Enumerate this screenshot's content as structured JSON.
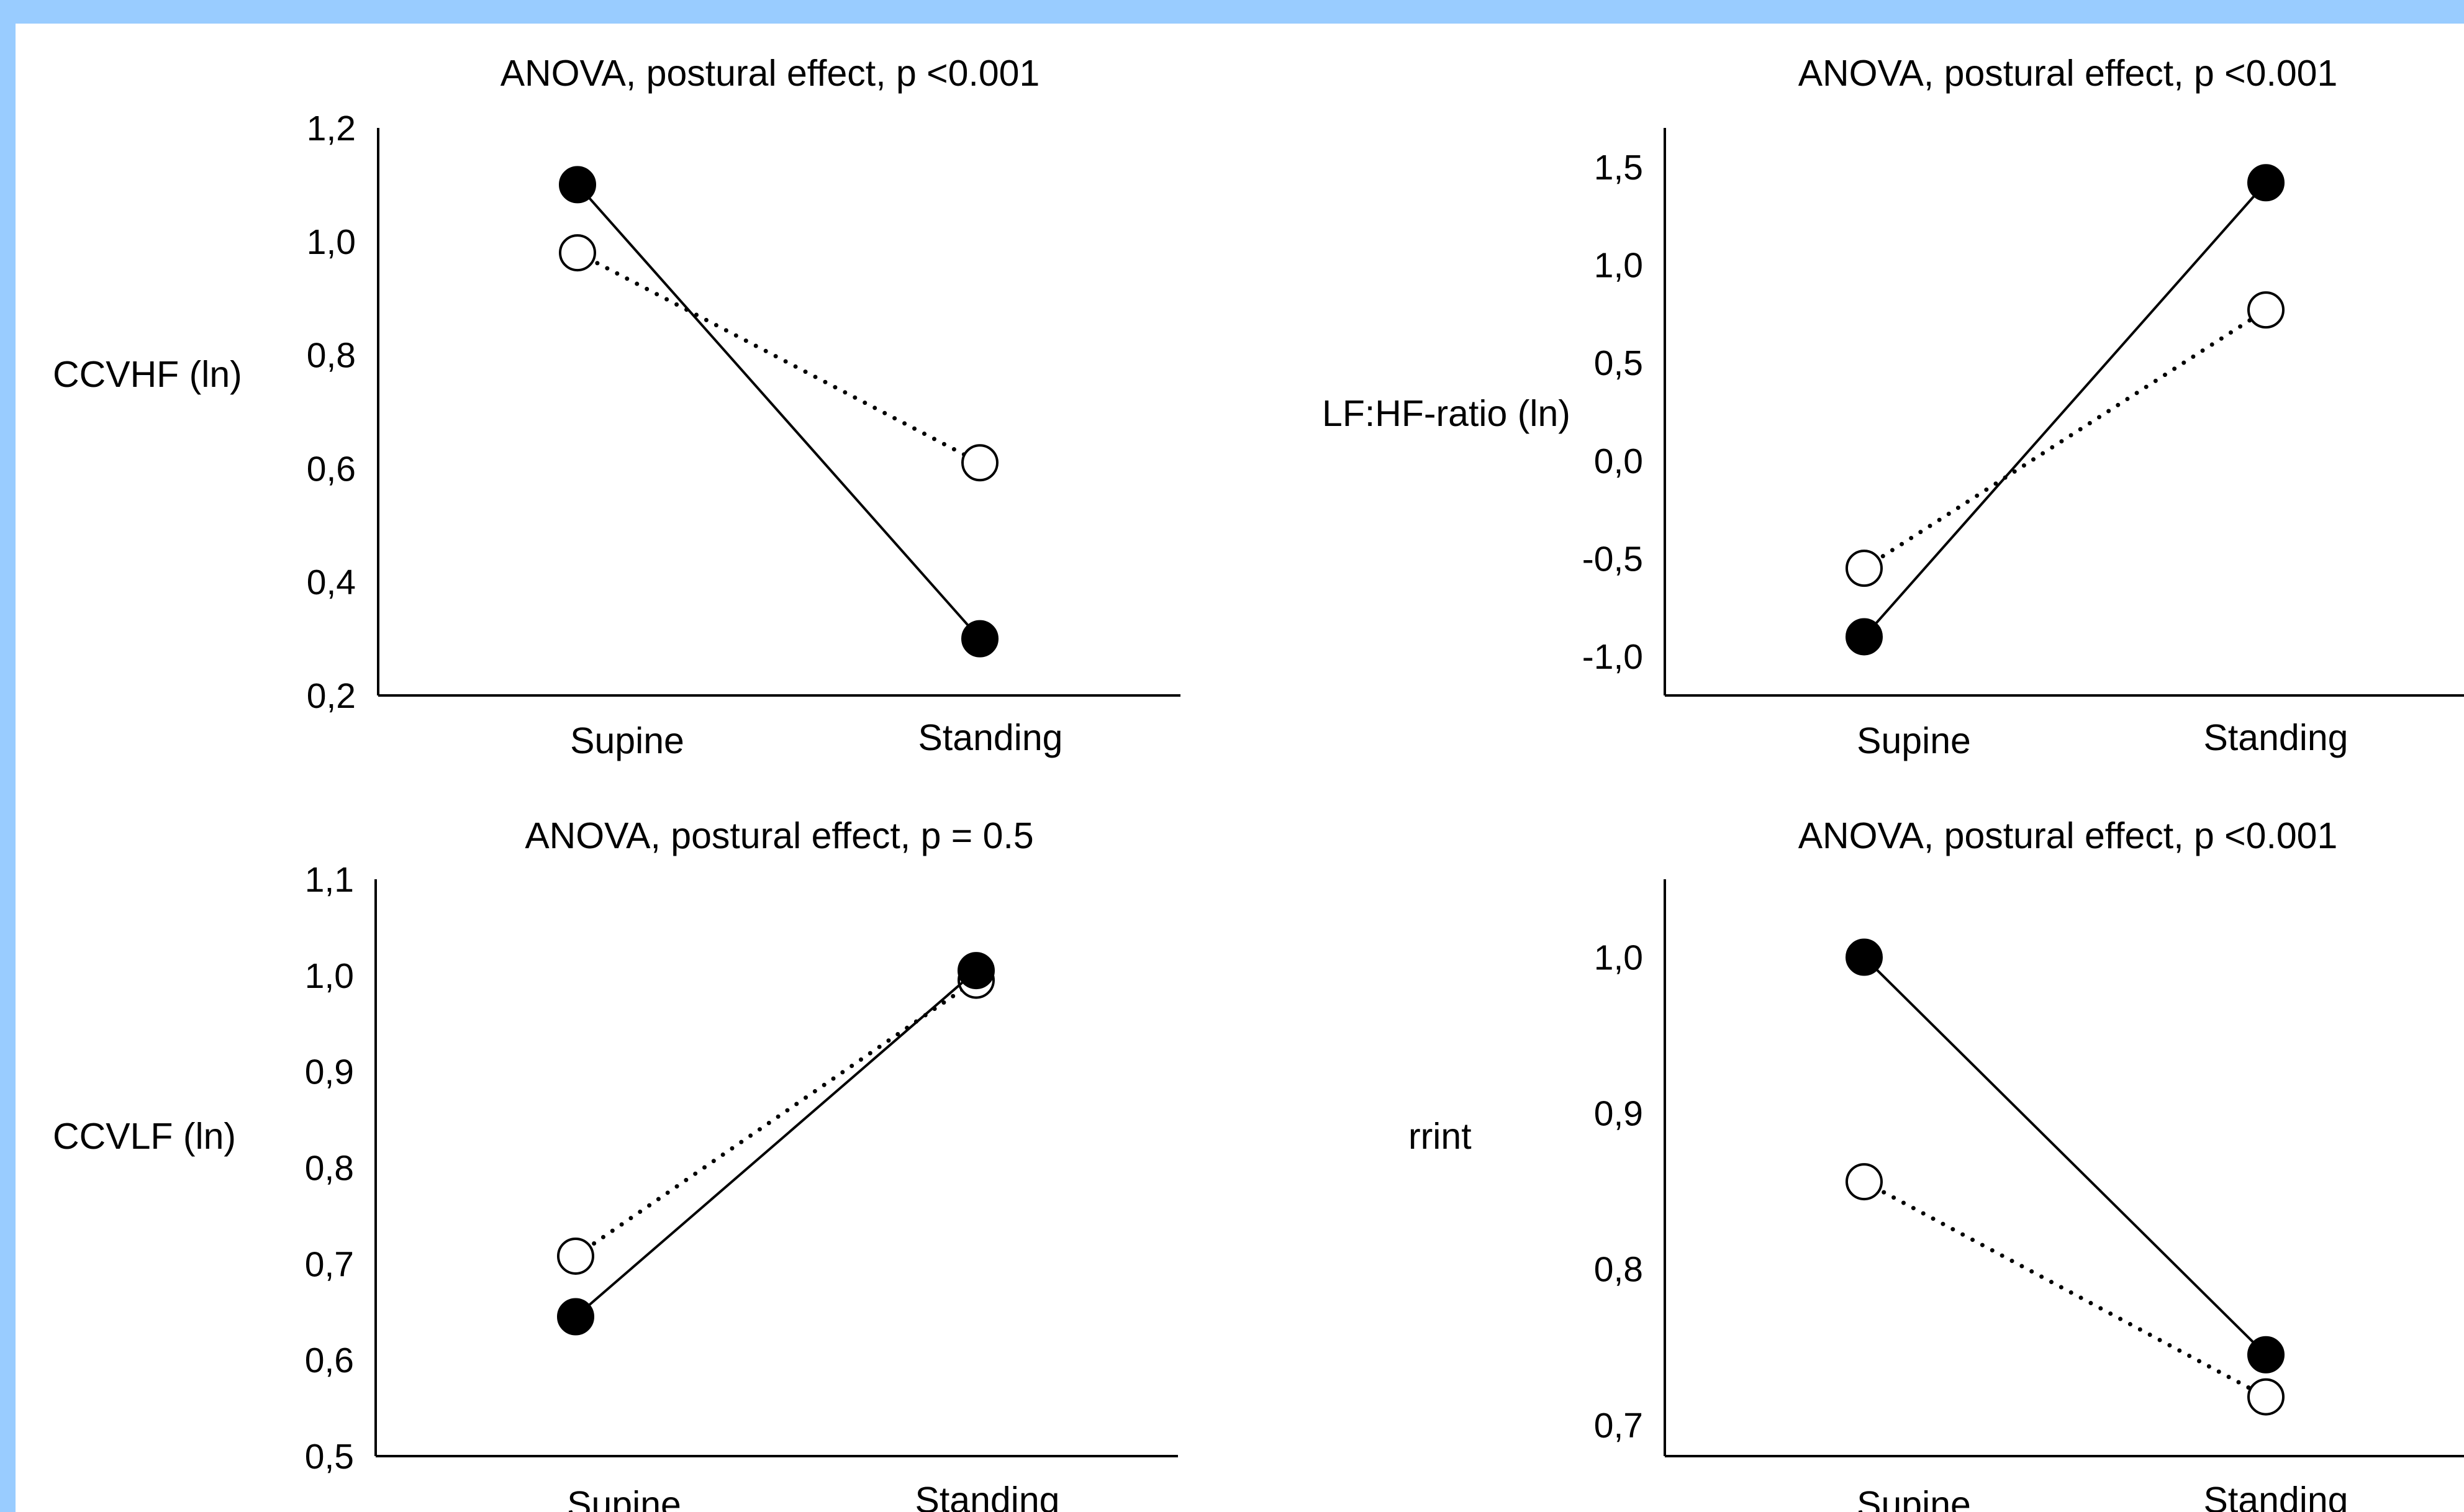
{
  "colors": {
    "frame": "#99CCFF",
    "ink": "#000000",
    "open_marker_fill": "#ffffff"
  },
  "chart_data": [
    {
      "type": "line",
      "title": "ANOVA, postural effect, p <0.001",
      "ylabel": "CCVHF (ln)",
      "xlabel": "",
      "categories": [
        "Supine",
        "Standing"
      ],
      "ylim": [
        0.2,
        1.2
      ],
      "yticks": [
        "0,2",
        "0,4",
        "0,6",
        "0,8",
        "1,0",
        "1,2"
      ],
      "ytick_values": [
        0.2,
        0.4,
        0.6,
        0.8,
        1.0,
        1.2
      ],
      "series": [
        {
          "marker": "filled",
          "line": "solid",
          "values": [
            1.1,
            0.3
          ]
        },
        {
          "marker": "open",
          "line": "dotted",
          "values": [
            0.98,
            0.61
          ]
        }
      ]
    },
    {
      "type": "line",
      "title": "ANOVA, postural effect, p <0.001",
      "ylabel": "LF:HF-ratio (ln)",
      "xlabel": "",
      "categories": [
        "Supine",
        "Standing"
      ],
      "ylim": [
        -1.2,
        1.7
      ],
      "yticks": [
        "-1,0",
        "-0,5",
        "0,0",
        "0,5",
        "1,0",
        "1,5"
      ],
      "ytick_values": [
        -1.0,
        -0.5,
        0.0,
        0.5,
        1.0,
        1.5
      ],
      "series": [
        {
          "marker": "filled",
          "line": "solid",
          "values": [
            -0.9,
            1.42
          ]
        },
        {
          "marker": "open",
          "line": "dotted",
          "values": [
            -0.55,
            0.77
          ]
        }
      ]
    },
    {
      "type": "line",
      "title": "ANOVA, postural effect, p = 0.5",
      "ylabel": "CCVLF (ln)",
      "xlabel": "",
      "categories": [
        "Supine",
        "Standing"
      ],
      "ylim": [
        0.5,
        1.1
      ],
      "yticks": [
        "0,5",
        "0,6",
        "0,7",
        "0,8",
        "0,9",
        "1,0",
        "1,1"
      ],
      "ytick_values": [
        0.5,
        0.6,
        0.7,
        0.8,
        0.9,
        1.0,
        1.1
      ],
      "series": [
        {
          "marker": "filled",
          "line": "solid",
          "values": [
            0.645,
            1.005
          ]
        },
        {
          "marker": "open",
          "line": "dotted",
          "values": [
            0.708,
            0.995
          ]
        }
      ]
    },
    {
      "type": "line",
      "title": "ANOVA, postural effect, p <0.001",
      "ylabel": "rrint",
      "xlabel": "",
      "categories": [
        "Supine",
        "Standing"
      ],
      "ylim": [
        0.68,
        1.05
      ],
      "yticks": [
        "0,7",
        "0,8",
        "0,9",
        "1,0"
      ],
      "ytick_values": [
        0.7,
        0.8,
        0.9,
        1.0
      ],
      "series": [
        {
          "marker": "filled",
          "line": "solid",
          "values": [
            1.0,
            0.745
          ]
        },
        {
          "marker": "open",
          "line": "dotted",
          "values": [
            0.856,
            0.718
          ]
        }
      ]
    }
  ]
}
